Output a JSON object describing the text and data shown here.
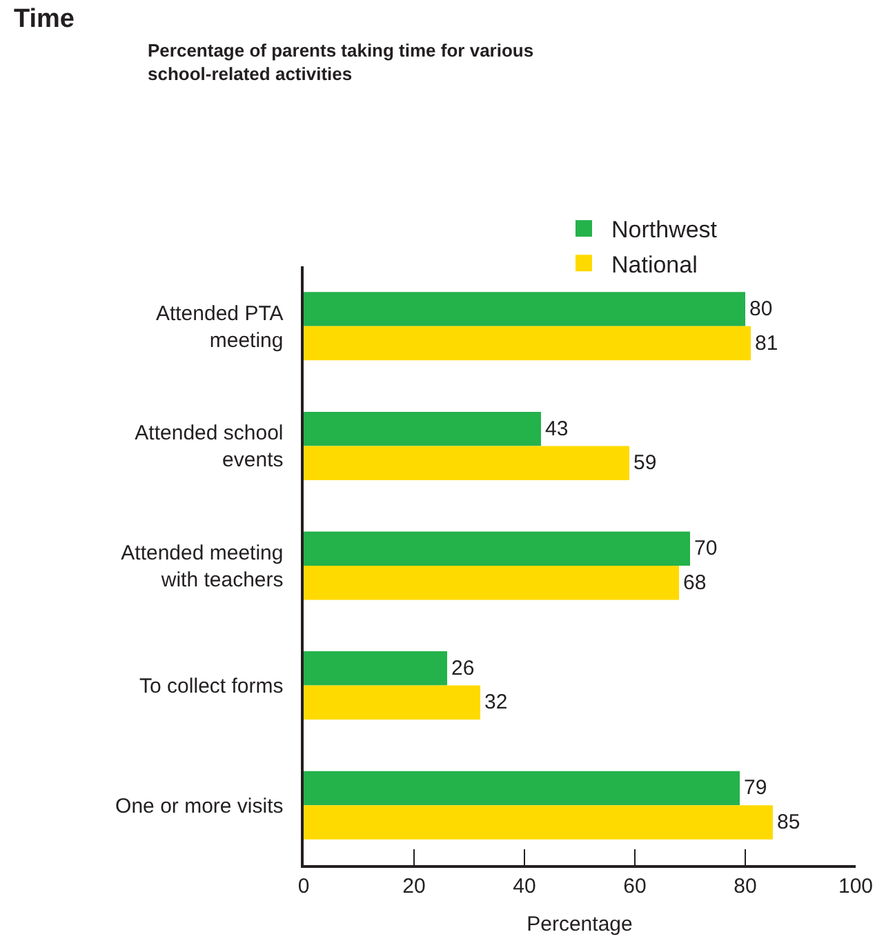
{
  "chart_data": {
    "type": "bar",
    "orientation": "horizontal",
    "title": "Time",
    "subtitle": "Percentage of parents taking time for various\nschool-related activities",
    "xlabel": "Percentage",
    "categories": [
      "Attended PTA\nmeeting",
      "Attended school\nevents",
      "Attended meeting\nwith teachers",
      "To collect forms",
      "One or more visits"
    ],
    "series": [
      {
        "name": "Northwest",
        "color": "#24b24b",
        "values": [
          80,
          43,
          70,
          26,
          79
        ]
      },
      {
        "name": "National",
        "color": "#ffda00",
        "values": [
          81,
          59,
          68,
          32,
          85
        ]
      }
    ],
    "xlim": [
      0,
      100
    ],
    "xticks": [
      0,
      20,
      40,
      60,
      80,
      100
    ],
    "data_labels": true,
    "legend": "top"
  }
}
